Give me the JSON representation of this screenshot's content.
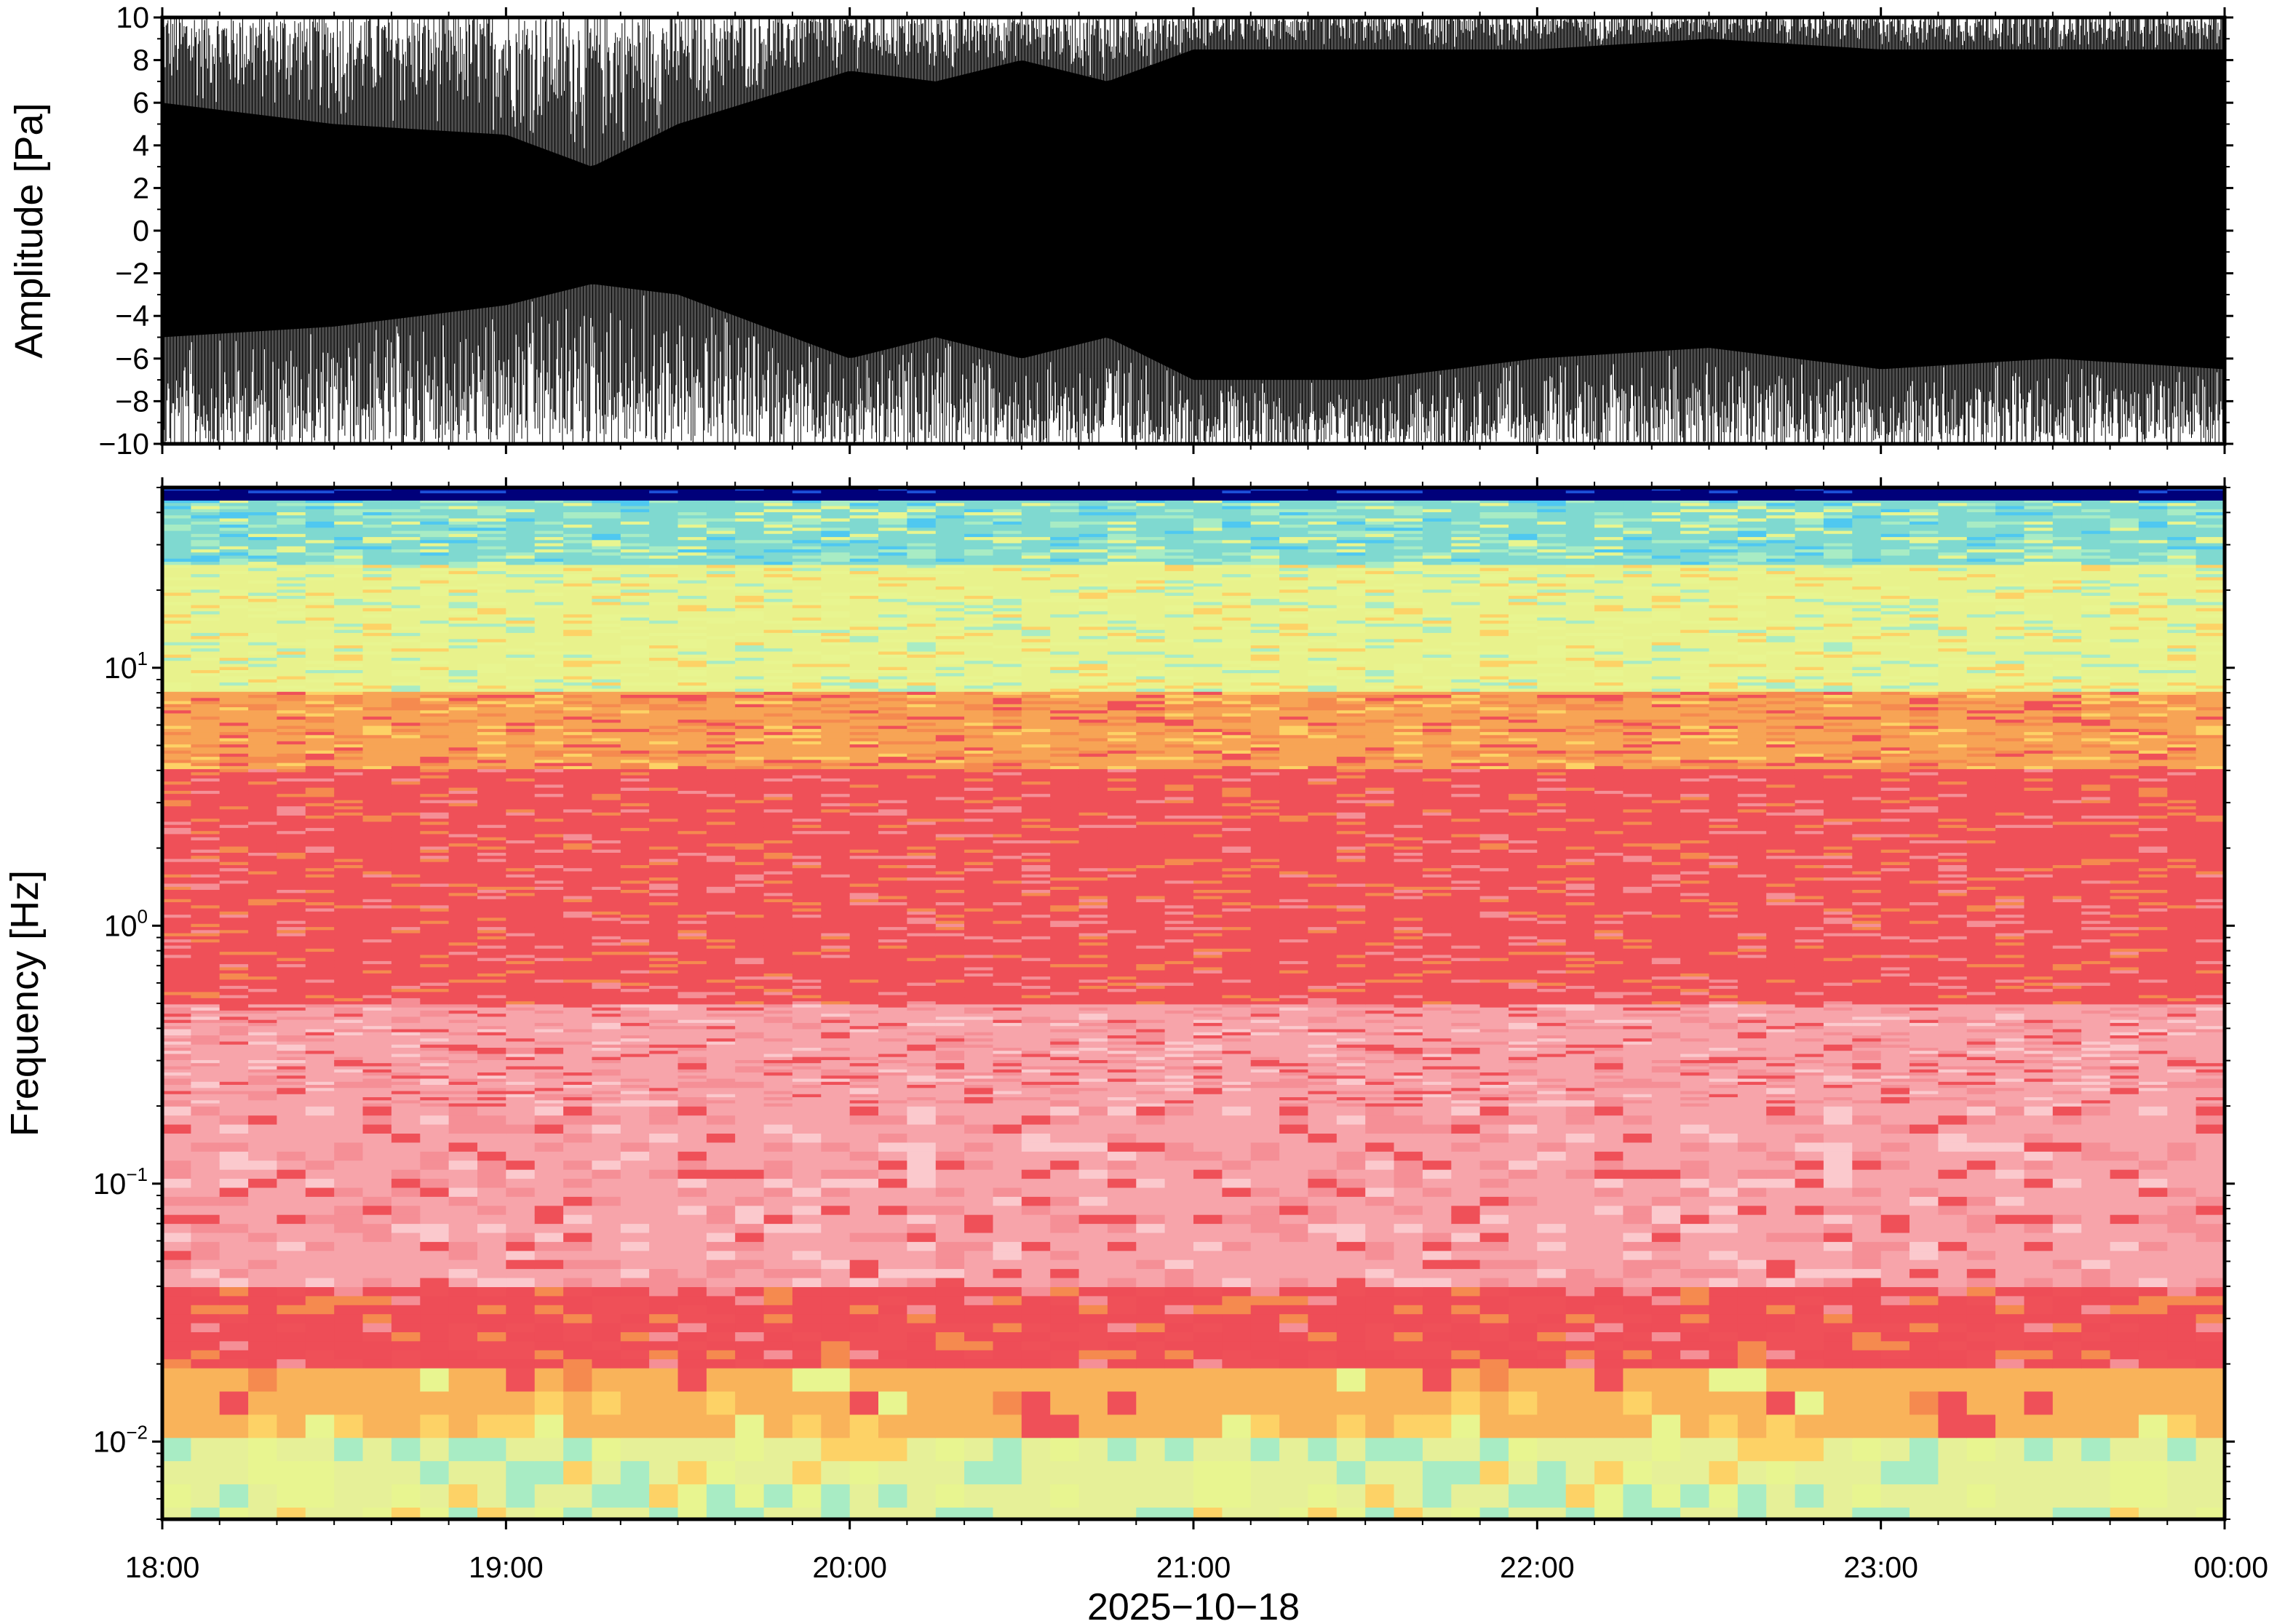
{
  "chart_data": [
    {
      "type": "line",
      "ylabel": "Amplitude [Pa]",
      "ylim": [
        -10,
        10
      ],
      "yticks": [
        "10",
        "8",
        "6",
        "4",
        "2",
        "0",
        "−2",
        "−4",
        "−6",
        "−8",
        "−10"
      ],
      "ytick_values": [
        10,
        8,
        6,
        4,
        2,
        0,
        -2,
        -4,
        -6,
        -8,
        -10
      ],
      "xlim": [
        "18:00",
        "00:00"
      ],
      "series_color": "#000000",
      "envelope": {
        "x_hours": [
          0,
          0.5,
          1.0,
          1.25,
          1.5,
          2.0,
          2.25,
          2.5,
          2.75,
          3.0,
          3.5,
          4.0,
          4.5,
          5.0,
          5.5,
          6.0
        ],
        "upper_min": [
          6.0,
          5.0,
          4.5,
          3.0,
          5.0,
          7.5,
          7.0,
          8.0,
          7.0,
          8.5,
          8.5,
          8.5,
          9.0,
          8.5,
          8.5,
          8.5
        ],
        "lower_max": [
          -5.0,
          -4.5,
          -3.5,
          -2.5,
          -3.0,
          -6.0,
          -5.0,
          -6.0,
          -5.0,
          -7.0,
          -7.0,
          -6.0,
          -5.5,
          -6.5,
          -6.0,
          -6.5
        ]
      }
    },
    {
      "type": "heatmap",
      "ylabel": "Frequency [Hz]",
      "xlabel": "2025−10−18",
      "yscale": "log",
      "ylim": [
        0.005,
        50
      ],
      "yticks": [
        {
          "base": "10",
          "exp": "1"
        },
        {
          "base": "10",
          "exp": "0"
        },
        {
          "base": "10",
          "exp": "−1"
        },
        {
          "base": "10",
          "exp": "−2"
        }
      ],
      "ytick_values": [
        10,
        1,
        0.1,
        0.01
      ],
      "xticks": [
        "18:00",
        "19:00",
        "20:00",
        "21:00",
        "22:00",
        "23:00",
        "00:00"
      ],
      "colormap": [
        "#00007a",
        "#1c4fd8",
        "#4fc8f0",
        "#a8ecc4",
        "#e8f590",
        "#fdd266",
        "#f58a4f",
        "#ef5058",
        "#f58f96",
        "#fbc9cd"
      ],
      "bands": [
        {
          "f_min": 46,
          "f_max": 50,
          "level": "lowest",
          "color": "#00007a"
        },
        {
          "f_min": 25,
          "f_max": 46,
          "level": "low",
          "color": "#7fd9d0"
        },
        {
          "f_min": 8,
          "f_max": 25,
          "level": "mid",
          "color": "#e8f28c"
        },
        {
          "f_min": 4,
          "f_max": 8,
          "level": "mid-high",
          "color": "#f7a455"
        },
        {
          "f_min": 0.5,
          "f_max": 4,
          "level": "high",
          "color": "#ef5058"
        },
        {
          "f_min": 0.04,
          "f_max": 0.5,
          "level": "high-variable",
          "color": "#f7a4aa"
        },
        {
          "f_min": 0.018,
          "f_max": 0.04,
          "level": "high",
          "color": "#ee4d57"
        },
        {
          "f_min": 0.01,
          "f_max": 0.018,
          "level": "mid-high",
          "color": "#f9b35a"
        },
        {
          "f_min": 0.005,
          "f_max": 0.01,
          "level": "mid",
          "color": "#e6f098"
        }
      ]
    }
  ]
}
